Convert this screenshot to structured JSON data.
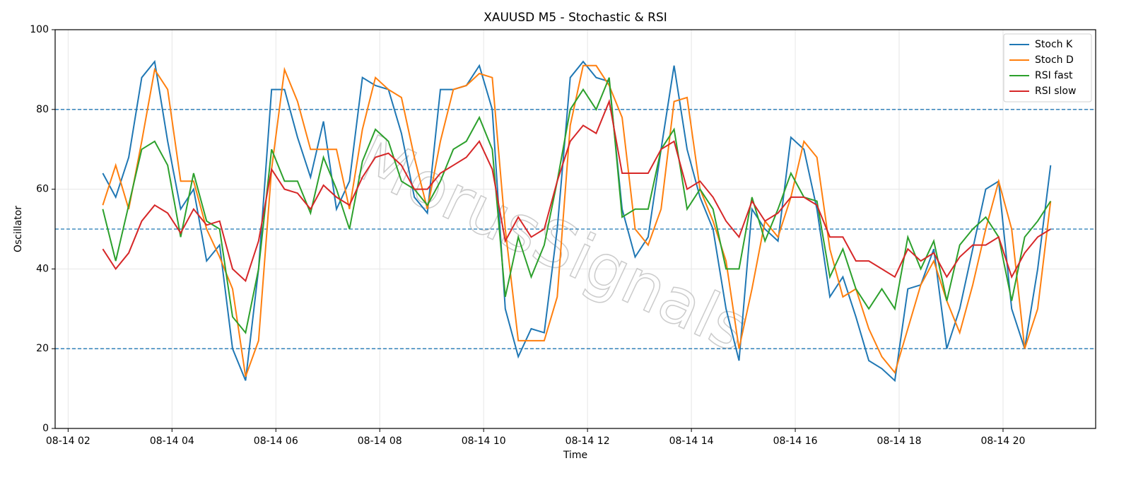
{
  "chart_data": {
    "type": "line",
    "title": "XAUUSD M5 - Stochastic & RSI",
    "xlabel": "Time",
    "ylabel": "Oscillator",
    "watermark": "MorusSignals",
    "x": [
      "08-14 02:40",
      "08-14 02:55",
      "08-14 03:10",
      "08-14 03:25",
      "08-14 03:40",
      "08-14 03:55",
      "08-14 04:10",
      "08-14 04:25",
      "08-14 04:40",
      "08-14 04:55",
      "08-14 05:10",
      "08-14 05:25",
      "08-14 05:40",
      "08-14 05:55",
      "08-14 06:10",
      "08-14 06:25",
      "08-14 06:40",
      "08-14 06:55",
      "08-14 07:10",
      "08-14 07:25",
      "08-14 07:40",
      "08-14 07:55",
      "08-14 08:10",
      "08-14 08:25",
      "08-14 08:40",
      "08-14 08:55",
      "08-14 09:10",
      "08-14 09:25",
      "08-14 09:40",
      "08-14 09:55",
      "08-14 10:10",
      "08-14 10:25",
      "08-14 10:40",
      "08-14 10:55",
      "08-14 11:10",
      "08-14 11:25",
      "08-14 11:40",
      "08-14 11:55",
      "08-14 12:10",
      "08-14 12:25",
      "08-14 12:40",
      "08-14 12:55",
      "08-14 13:10",
      "08-14 13:25",
      "08-14 13:40",
      "08-14 13:55",
      "08-14 14:10",
      "08-14 14:25",
      "08-14 14:40",
      "08-14 14:55",
      "08-14 15:10",
      "08-14 15:25",
      "08-14 15:40",
      "08-14 15:55",
      "08-14 16:10",
      "08-14 16:25",
      "08-14 16:40",
      "08-14 16:55",
      "08-14 17:10",
      "08-14 17:25",
      "08-14 17:40",
      "08-14 17:55",
      "08-14 18:10",
      "08-14 18:25",
      "08-14 18:40",
      "08-14 18:55",
      "08-14 19:10",
      "08-14 19:25",
      "08-14 19:40",
      "08-14 19:55",
      "08-14 20:10",
      "08-14 20:25",
      "08-14 20:40",
      "08-14 20:55"
    ],
    "series": [
      {
        "name": "Stoch K",
        "color": "#1f77b4",
        "values": [
          64,
          58,
          68,
          88,
          92,
          72,
          55,
          60,
          42,
          46,
          20,
          12,
          40,
          85,
          85,
          73,
          63,
          77,
          55,
          62,
          88,
          86,
          85,
          74,
          58,
          54,
          85,
          85,
          86,
          91,
          80,
          30,
          18,
          25,
          24,
          50,
          88,
          92,
          88,
          87,
          55,
          43,
          48,
          70,
          91,
          70,
          58,
          50,
          30,
          17,
          55,
          50,
          47,
          73,
          70,
          55,
          33,
          38,
          28,
          17,
          15,
          12,
          35,
          36,
          45,
          20,
          30,
          45,
          60,
          62,
          30,
          20,
          40,
          66
        ]
      },
      {
        "name": "Stoch D",
        "color": "#ff7f0e",
        "values": [
          56,
          66,
          55,
          72,
          90,
          85,
          62,
          62,
          50,
          43,
          35,
          13,
          22,
          65,
          90,
          82,
          70,
          70,
          70,
          55,
          75,
          88,
          85,
          83,
          68,
          55,
          72,
          85,
          86,
          89,
          88,
          50,
          22,
          22,
          22,
          33,
          76,
          91,
          91,
          86,
          78,
          50,
          46,
          55,
          82,
          83,
          60,
          52,
          42,
          20,
          35,
          52,
          48,
          58,
          72,
          68,
          45,
          33,
          35,
          25,
          18,
          14,
          25,
          36,
          42,
          32,
          24,
          36,
          50,
          62,
          50,
          20,
          30,
          57
        ]
      },
      {
        "name": "RSI fast",
        "color": "#2ca02c",
        "values": [
          55,
          42,
          56,
          70,
          72,
          66,
          48,
          64,
          52,
          50,
          28,
          24,
          40,
          70,
          62,
          62,
          54,
          68,
          60,
          50,
          67,
          75,
          72,
          62,
          60,
          56,
          62,
          70,
          72,
          78,
          70,
          33,
          48,
          38,
          46,
          62,
          80,
          85,
          80,
          88,
          53,
          55,
          55,
          70,
          75,
          55,
          60,
          55,
          40,
          40,
          58,
          47,
          55,
          64,
          58,
          57,
          38,
          45,
          35,
          30,
          35,
          30,
          48,
          40,
          47,
          32,
          46,
          50,
          53,
          48,
          32,
          48,
          52,
          57
        ]
      },
      {
        "name": "RSI slow",
        "color": "#d62728",
        "values": [
          45,
          40,
          44,
          52,
          56,
          54,
          49,
          55,
          51,
          52,
          40,
          37,
          47,
          65,
          60,
          59,
          55,
          61,
          58,
          56,
          63,
          68,
          69,
          66,
          60,
          60,
          64,
          66,
          68,
          72,
          65,
          47,
          53,
          48,
          50,
          62,
          72,
          76,
          74,
          82,
          64,
          64,
          64,
          70,
          72,
          60,
          62,
          58,
          52,
          48,
          57,
          52,
          54,
          58,
          58,
          56,
          48,
          48,
          42,
          42,
          40,
          38,
          45,
          42,
          44,
          38,
          43,
          46,
          46,
          48,
          38,
          44,
          48,
          50
        ]
      }
    ],
    "hlines": [
      80,
      50,
      20
    ],
    "hline_color": "#1f77b4",
    "xlim": [
      "08-14 01:45",
      "08-14 21:47"
    ],
    "xticks": [
      {
        "value": "08-14 02:00",
        "label": "08-14 02"
      },
      {
        "value": "08-14 04:00",
        "label": "08-14 04"
      },
      {
        "value": "08-14 06:00",
        "label": "08-14 06"
      },
      {
        "value": "08-14 08:00",
        "label": "08-14 08"
      },
      {
        "value": "08-14 10:00",
        "label": "08-14 10"
      },
      {
        "value": "08-14 12:00",
        "label": "08-14 12"
      },
      {
        "value": "08-14 14:00",
        "label": "08-14 14"
      },
      {
        "value": "08-14 16:00",
        "label": "08-14 16"
      },
      {
        "value": "08-14 18:00",
        "label": "08-14 18"
      },
      {
        "value": "08-14 20:00",
        "label": "08-14 20"
      }
    ],
    "ylim": [
      0,
      100
    ],
    "yticks": [
      0,
      20,
      40,
      60,
      80,
      100
    ],
    "grid": true,
    "legend": "upper right"
  }
}
